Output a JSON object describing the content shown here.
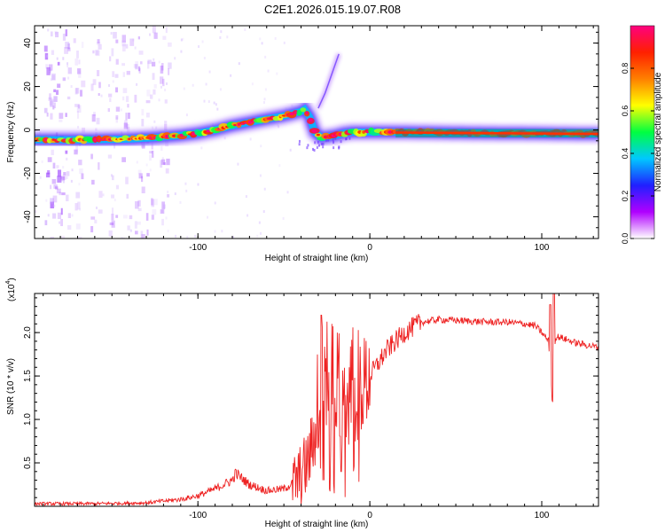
{
  "title": "C2E1.2026.015.19.07.R08",
  "chart_data": [
    {
      "type": "heatmap",
      "name": "frequency-spectrogram",
      "xlabel": "Height of straight line (km)",
      "ylabel": "Frequency (Hz)",
      "xlim": [
        -195,
        133
      ],
      "ylim": [
        -50,
        48
      ],
      "xticks": [
        -100,
        0,
        100
      ],
      "yticks": [
        -40,
        -20,
        0,
        20,
        40
      ],
      "xtick_labels": [
        "-100",
        "0",
        "100"
      ],
      "ytick_labels": [
        "-40",
        "-20",
        "0",
        "20",
        "40"
      ],
      "ridge_x": [
        -195,
        -180,
        -160,
        -140,
        -125,
        -110,
        -100,
        -90,
        -80,
        -70,
        -60,
        -50,
        -45,
        -40,
        -38,
        -35,
        -32,
        -28,
        -24,
        -20,
        -15,
        -10,
        -5,
        0,
        10,
        20,
        40,
        60,
        80,
        100,
        110,
        120,
        133
      ],
      "ridge_y": [
        -4.5,
        -4.5,
        -4.5,
        -4.2,
        -3.5,
        -2.5,
        -1.5,
        0,
        2,
        3.5,
        5,
        6.5,
        7.5,
        8.5,
        9.5,
        6,
        -1,
        -3.5,
        -3,
        -2.5,
        -1.5,
        -1,
        -1,
        -1,
        -1,
        -1,
        -1.2,
        -1.4,
        -1.5,
        -1.6,
        -1.7,
        -1.8,
        -1.8
      ],
      "side_branch_x": [
        -30,
        -26,
        -22,
        -18
      ],
      "side_branch_y": [
        10,
        17,
        26,
        35
      ],
      "colorbar": {
        "label": "Normalized spectral amplitude",
        "range": [
          0,
          1
        ],
        "ticks": [
          0,
          0.2,
          0.4,
          0.6,
          0.8
        ],
        "tick_labels": [
          "0.0",
          "0.2",
          "0.4",
          "0.6",
          "0.8"
        ],
        "colors": [
          "#ffffff",
          "#b000ff",
          "#2020ff",
          "#00c8ff",
          "#00ff40",
          "#ffff00",
          "#ff8000",
          "#ff2000",
          "#ff0080"
        ]
      }
    },
    {
      "type": "line",
      "name": "snr-trace",
      "xlabel": "Height of straight line (km)",
      "ylabel": "SNR (10 * v/v)",
      "exponent_label": "(x10",
      "exponent_power": "4",
      "exponent_close": ")",
      "xlim": [
        -195,
        133
      ],
      "ylim": [
        0,
        2.45
      ],
      "xticks": [
        -100,
        0,
        100
      ],
      "yticks": [
        0.5,
        1.0,
        1.5,
        2.0
      ],
      "xtick_labels": [
        "-100",
        "0",
        "100"
      ],
      "ytick_labels": [
        "0.5",
        "1.0",
        "1.5",
        "2.0"
      ],
      "color": "#ee2222",
      "x": [
        -195,
        -160,
        -130,
        -110,
        -100,
        -90,
        -80,
        -78,
        -70,
        -60,
        -50,
        -42,
        -36,
        -30,
        -26,
        -22,
        -18,
        -14,
        -10,
        -5,
        0,
        5,
        10,
        20,
        30,
        40,
        50,
        60,
        70,
        80,
        90,
        96,
        100,
        104,
        106,
        108,
        110,
        120,
        133
      ],
      "y": [
        0.03,
        0.03,
        0.04,
        0.08,
        0.12,
        0.2,
        0.3,
        0.38,
        0.25,
        0.18,
        0.2,
        0.3,
        0.5,
        1.0,
        1.3,
        1.1,
        1.2,
        1.1,
        1.2,
        1.35,
        1.5,
        1.65,
        1.8,
        2.0,
        2.12,
        2.15,
        2.14,
        2.13,
        2.12,
        2.12,
        2.1,
        2.08,
        2.0,
        1.9,
        1.25,
        1.95,
        1.95,
        1.88,
        1.83
      ],
      "spike_x": [
        -28,
        -27,
        -25,
        -24,
        -22,
        -21,
        -19,
        -17,
        105,
        106,
        107
      ],
      "spike_y": [
        2.2,
        0.3,
        2.3,
        0.2,
        2.1,
        0.15,
        2.0,
        0.4,
        2.32,
        1.2,
        2.45
      ]
    }
  ]
}
